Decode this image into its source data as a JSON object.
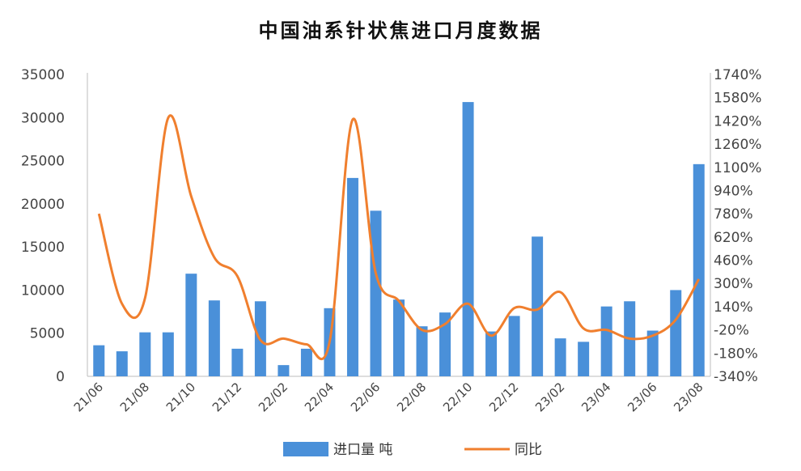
{
  "title": "中国油系针状焦进口月度数据",
  "chart_data": {
    "type": "bar+line",
    "title": "中国油系针状焦进口月度数据",
    "categories": [
      "21/06",
      "21/07",
      "21/08",
      "21/09",
      "21/10",
      "21/11",
      "21/12",
      "22/01",
      "22/02",
      "22/03",
      "22/04",
      "22/05",
      "22/06",
      "22/07",
      "22/08",
      "22/09",
      "22/10",
      "22/11",
      "22/12",
      "23/01",
      "23/02",
      "23/03",
      "23/04",
      "23/05",
      "23/06",
      "23/07",
      "23/08"
    ],
    "x_tick_labels": [
      "21/06",
      "21/08",
      "21/10",
      "21/12",
      "22/02",
      "22/04",
      "22/06",
      "22/08",
      "22/10",
      "22/12",
      "23/02",
      "23/04",
      "23/06",
      "23/08"
    ],
    "series": [
      {
        "name": "进口量 吨",
        "type": "bar",
        "axis": "left",
        "color": "#4a90d9",
        "values": [
          3600,
          2900,
          5100,
          5100,
          11900,
          8800,
          3200,
          8700,
          1300,
          3200,
          7900,
          23000,
          19200,
          8900,
          5800,
          7400,
          31800,
          5200,
          7000,
          16200,
          4400,
          4000,
          8100,
          8700,
          5300,
          10000,
          24600
        ]
      },
      {
        "name": "同比",
        "type": "line",
        "axis": "right",
        "color": "#f07f2e",
        "values": [
          780,
          160,
          200,
          1440,
          900,
          480,
          350,
          -90,
          -80,
          -120,
          -100,
          1430,
          370,
          180,
          -20,
          20,
          160,
          -60,
          130,
          120,
          240,
          -10,
          -20,
          -80,
          -60,
          50,
          330
        ]
      }
    ],
    "y_left": {
      "ylim": [
        0,
        35000
      ],
      "ticks": [
        "0",
        "5000",
        "10000",
        "15000",
        "20000",
        "25000",
        "30000",
        "35000"
      ]
    },
    "y_right": {
      "ylim": [
        -340,
        1740
      ],
      "ticks": [
        "-340%",
        "-180%",
        "-20%",
        "140%",
        "300%",
        "460%",
        "620%",
        "780%",
        "940%",
        "1100%",
        "1260%",
        "1420%",
        "1580%",
        "1740%"
      ]
    },
    "legend": {
      "position": "bottom",
      "entries": [
        "进口量 吨",
        "同比"
      ]
    },
    "grid": false
  }
}
